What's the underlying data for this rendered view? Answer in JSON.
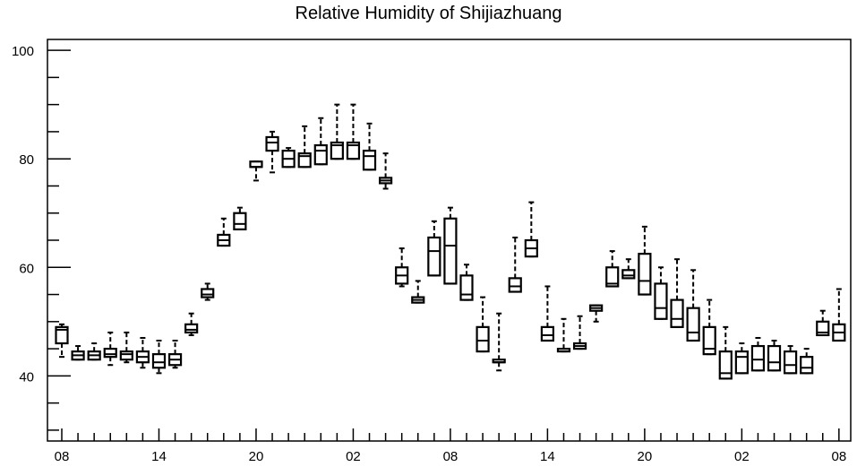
{
  "chart_data": {
    "type": "box",
    "title": "Relative Humidity of Shijiazhuang",
    "xlabel": "",
    "ylabel": "",
    "ylim": [
      28,
      102
    ],
    "y_ticks": [
      40,
      60,
      80,
      100
    ],
    "x_tick_labels": [
      "08",
      "14",
      "20",
      "02",
      "08",
      "14",
      "20",
      "02",
      "08"
    ],
    "x_tick_hours": [
      0,
      6,
      12,
      18,
      24,
      30,
      36,
      42,
      48
    ],
    "grid": false,
    "series": [
      {
        "boxes": [
          {
            "x": 0,
            "whisker_low": 43.5,
            "q1": 46.0,
            "median": 48.5,
            "q3": 49.0,
            "whisker_high": 49.5
          },
          {
            "x": 1,
            "whisker_low": 43.0,
            "q1": 43.0,
            "median": 43.8,
            "q3": 44.5,
            "whisker_high": 45.5
          },
          {
            "x": 2,
            "whisker_low": 43.0,
            "q1": 43.0,
            "median": 43.8,
            "q3": 44.5,
            "whisker_high": 46.0
          },
          {
            "x": 3,
            "whisker_low": 42.0,
            "q1": 43.5,
            "median": 44.0,
            "q3": 45.0,
            "whisker_high": 48.0
          },
          {
            "x": 4,
            "whisker_low": 42.5,
            "q1": 43.0,
            "median": 44.0,
            "q3": 44.5,
            "whisker_high": 48.0
          },
          {
            "x": 5,
            "whisker_low": 41.5,
            "q1": 42.5,
            "median": 43.5,
            "q3": 44.5,
            "whisker_high": 47.0
          },
          {
            "x": 6,
            "whisker_low": 40.5,
            "q1": 41.5,
            "median": 42.5,
            "q3": 44.0,
            "whisker_high": 46.5
          },
          {
            "x": 7,
            "whisker_low": 41.5,
            "q1": 42.0,
            "median": 43.0,
            "q3": 44.0,
            "whisker_high": 46.5
          },
          {
            "x": 8,
            "whisker_low": 47.5,
            "q1": 48.0,
            "median": 48.5,
            "q3": 49.5,
            "whisker_high": 51.5
          },
          {
            "x": 9,
            "whisker_low": 54.0,
            "q1": 54.5,
            "median": 55.0,
            "q3": 56.0,
            "whisker_high": 57.0
          },
          {
            "x": 10,
            "whisker_low": 64.0,
            "q1": 64.0,
            "median": 65.0,
            "q3": 66.0,
            "whisker_high": 69.0
          },
          {
            "x": 11,
            "whisker_low": 67.0,
            "q1": 67.0,
            "median": 68.0,
            "q3": 70.0,
            "whisker_high": 71.0
          },
          {
            "x": 12,
            "whisker_low": 76.0,
            "q1": 78.5,
            "median": 78.5,
            "q3": 79.5,
            "whisker_high": 79.5
          },
          {
            "x": 13,
            "whisker_low": 77.5,
            "q1": 81.5,
            "median": 83.0,
            "q3": 84.0,
            "whisker_high": 85.0
          },
          {
            "x": 14,
            "whisker_low": 78.5,
            "q1": 78.5,
            "median": 80.0,
            "q3": 81.5,
            "whisker_high": 82.0
          },
          {
            "x": 15,
            "whisker_low": 78.5,
            "q1": 78.5,
            "median": 80.5,
            "q3": 81.0,
            "whisker_high": 86.0
          },
          {
            "x": 16,
            "whisker_low": 79.0,
            "q1": 79.0,
            "median": 81.5,
            "q3": 82.5,
            "whisker_high": 87.5
          },
          {
            "x": 17,
            "whisker_low": 80.0,
            "q1": 80.0,
            "median": 82.5,
            "q3": 83.0,
            "whisker_high": 90.0
          },
          {
            "x": 18,
            "whisker_low": 80.0,
            "q1": 80.0,
            "median": 82.5,
            "q3": 83.0,
            "whisker_high": 90.0
          },
          {
            "x": 19,
            "whisker_low": 78.0,
            "q1": 78.0,
            "median": 80.5,
            "q3": 81.5,
            "whisker_high": 86.5
          },
          {
            "x": 20,
            "whisker_low": 74.5,
            "q1": 75.5,
            "median": 76.0,
            "q3": 76.5,
            "whisker_high": 81.0
          },
          {
            "x": 21,
            "whisker_low": 56.5,
            "q1": 57.0,
            "median": 58.5,
            "q3": 60.0,
            "whisker_high": 63.5
          },
          {
            "x": 22,
            "whisker_low": 53.5,
            "q1": 53.5,
            "median": 54.0,
            "q3": 54.5,
            "whisker_high": 57.5
          },
          {
            "x": 23,
            "whisker_low": 58.5,
            "q1": 58.5,
            "median": 63.0,
            "q3": 65.5,
            "whisker_high": 68.5
          },
          {
            "x": 24,
            "whisker_low": 57.0,
            "q1": 57.0,
            "median": 64.0,
            "q3": 69.0,
            "whisker_high": 71.0
          },
          {
            "x": 25,
            "whisker_low": 54.0,
            "q1": 54.0,
            "median": 55.0,
            "q3": 58.5,
            "whisker_high": 60.5
          },
          {
            "x": 26,
            "whisker_low": 44.5,
            "q1": 44.5,
            "median": 46.5,
            "q3": 49.0,
            "whisker_high": 54.5
          },
          {
            "x": 27,
            "whisker_low": 41.0,
            "q1": 42.5,
            "median": 42.5,
            "q3": 43.0,
            "whisker_high": 51.5
          },
          {
            "x": 28,
            "whisker_low": 55.5,
            "q1": 55.5,
            "median": 56.5,
            "q3": 58.0,
            "whisker_high": 65.5
          },
          {
            "x": 29,
            "whisker_low": 62.0,
            "q1": 62.0,
            "median": 63.5,
            "q3": 65.0,
            "whisker_high": 72.0
          },
          {
            "x": 30,
            "whisker_low": 46.5,
            "q1": 46.5,
            "median": 47.5,
            "q3": 49.0,
            "whisker_high": 56.5
          },
          {
            "x": 31,
            "whisker_low": 44.5,
            "q1": 44.5,
            "median": 45.0,
            "q3": 45.0,
            "whisker_high": 50.5
          },
          {
            "x": 32,
            "whisker_low": 45.0,
            "q1": 45.0,
            "median": 45.5,
            "q3": 46.0,
            "whisker_high": 51.0
          },
          {
            "x": 33,
            "whisker_low": 50.0,
            "q1": 52.0,
            "median": 52.5,
            "q3": 53.0,
            "whisker_high": 53.0
          },
          {
            "x": 34,
            "whisker_low": 56.5,
            "q1": 56.5,
            "median": 57.0,
            "q3": 60.0,
            "whisker_high": 63.0
          },
          {
            "x": 35,
            "whisker_low": 58.0,
            "q1": 58.0,
            "median": 58.5,
            "q3": 59.5,
            "whisker_high": 61.5
          },
          {
            "x": 36,
            "whisker_low": 55.0,
            "q1": 55.0,
            "median": 57.5,
            "q3": 62.5,
            "whisker_high": 67.5
          },
          {
            "x": 37,
            "whisker_low": 50.5,
            "q1": 50.5,
            "median": 52.5,
            "q3": 57.0,
            "whisker_high": 60.0
          },
          {
            "x": 38,
            "whisker_low": 49.0,
            "q1": 49.0,
            "median": 50.5,
            "q3": 54.0,
            "whisker_high": 61.5
          },
          {
            "x": 39,
            "whisker_low": 46.5,
            "q1": 46.5,
            "median": 48.0,
            "q3": 52.5,
            "whisker_high": 59.5
          },
          {
            "x": 40,
            "whisker_low": 44.0,
            "q1": 44.0,
            "median": 45.0,
            "q3": 49.0,
            "whisker_high": 54.0
          },
          {
            "x": 41,
            "whisker_low": 39.5,
            "q1": 39.5,
            "median": 40.5,
            "q3": 44.5,
            "whisker_high": 49.0
          },
          {
            "x": 42,
            "whisker_low": 40.5,
            "q1": 40.5,
            "median": 43.5,
            "q3": 44.5,
            "whisker_high": 46.0
          },
          {
            "x": 43,
            "whisker_low": 41.0,
            "q1": 41.0,
            "median": 43.0,
            "q3": 45.5,
            "whisker_high": 47.0
          },
          {
            "x": 44,
            "whisker_low": 41.0,
            "q1": 41.0,
            "median": 42.5,
            "q3": 45.5,
            "whisker_high": 46.5
          },
          {
            "x": 45,
            "whisker_low": 40.5,
            "q1": 40.5,
            "median": 42.0,
            "q3": 44.5,
            "whisker_high": 45.5
          },
          {
            "x": 46,
            "whisker_low": 40.5,
            "q1": 40.5,
            "median": 41.5,
            "q3": 43.5,
            "whisker_high": 45.0
          },
          {
            "x": 47,
            "whisker_low": 47.5,
            "q1": 47.5,
            "median": 48.0,
            "q3": 50.0,
            "whisker_high": 52.0
          },
          {
            "x": 48,
            "whisker_low": 46.5,
            "q1": 46.5,
            "median": 48.0,
            "q3": 49.5,
            "whisker_high": 56.0
          }
        ]
      }
    ]
  }
}
